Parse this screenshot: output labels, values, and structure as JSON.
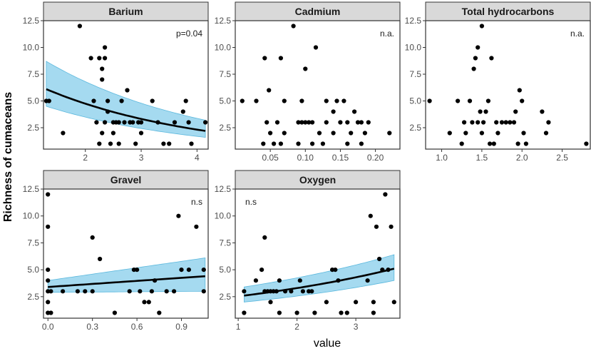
{
  "figure": {
    "ylabel": "Richness of cumaceans",
    "xlabel": "value"
  },
  "colors": {
    "point": "#000000",
    "ribbon": "#87CEEB",
    "ribbon_edge": "#5BB8DD",
    "trend": "#000000",
    "strip_fill": "#D9D9D9",
    "panel_border": "#333333"
  },
  "chart_data": [
    {
      "type": "scatter",
      "title": "Barium",
      "annotation": "p=0.04",
      "xlabel": "value",
      "ylabel": "Richness of cumaceans",
      "xlim": [
        1.25,
        4.2
      ],
      "ylim": [
        0.5,
        12.5
      ],
      "xticks": [
        2,
        3,
        4
      ],
      "xtick_labels": [
        "2",
        "3",
        "4"
      ],
      "yticks": [
        2.5,
        5.0,
        7.5,
        10.0,
        12.5
      ],
      "ytick_labels": [
        "2.5",
        "5.0",
        "7.5",
        "10.0",
        "12.5"
      ],
      "points": [
        [
          1.3,
          5
        ],
        [
          1.35,
          5
        ],
        [
          1.6,
          2
        ],
        [
          1.9,
          12
        ],
        [
          2.1,
          9
        ],
        [
          2.15,
          5
        ],
        [
          2.2,
          3
        ],
        [
          2.25,
          1
        ],
        [
          2.25,
          9
        ],
        [
          2.3,
          7
        ],
        [
          2.3,
          8
        ],
        [
          2.35,
          9
        ],
        [
          2.35,
          10
        ],
        [
          2.3,
          2
        ],
        [
          2.35,
          3
        ],
        [
          2.4,
          4
        ],
        [
          2.4,
          5
        ],
        [
          2.45,
          1
        ],
        [
          2.5,
          3
        ],
        [
          2.5,
          2
        ],
        [
          2.55,
          3
        ],
        [
          2.6,
          1
        ],
        [
          2.6,
          3
        ],
        [
          2.65,
          5
        ],
        [
          2.7,
          3
        ],
        [
          2.75,
          6
        ],
        [
          2.8,
          3
        ],
        [
          2.85,
          3
        ],
        [
          2.9,
          1
        ],
        [
          2.95,
          3
        ],
        [
          3.0,
          2
        ],
        [
          3.0,
          3
        ],
        [
          3.2,
          5
        ],
        [
          3.3,
          3
        ],
        [
          3.4,
          1
        ],
        [
          3.5,
          1
        ],
        [
          3.6,
          3
        ],
        [
          3.75,
          4
        ],
        [
          3.8,
          5
        ],
        [
          3.85,
          3
        ],
        [
          3.9,
          1
        ],
        [
          4.15,
          3
        ]
      ],
      "trend": {
        "x": [
          1.3,
          4.15
        ],
        "y": [
          6.1,
          2.2
        ],
        "curve": "exponential"
      },
      "band": {
        "lower": [
          4.5,
          1.6
        ],
        "upper": [
          8.7,
          3.2
        ]
      }
    },
    {
      "type": "scatter",
      "title": "Cadmium",
      "annotation": "n.a.",
      "xlabel": "value",
      "ylabel": "Richness of cumaceans",
      "xlim": [
        0,
        0.235
      ],
      "ylim": [
        0.5,
        12.5
      ],
      "xticks": [
        0.05,
        0.1,
        0.15,
        0.2
      ],
      "xtick_labels": [
        "0.05",
        "0.10",
        "0.15",
        "0.20"
      ],
      "yticks": [
        2.5,
        5.0,
        7.5,
        10.0,
        12.5
      ],
      "ytick_labels": [
        "2.5",
        "5.0",
        "7.5",
        "10.0",
        "12.5"
      ],
      "points": [
        [
          0.01,
          5
        ],
        [
          0.03,
          5
        ],
        [
          0.04,
          1
        ],
        [
          0.042,
          9
        ],
        [
          0.045,
          3
        ],
        [
          0.048,
          6
        ],
        [
          0.05,
          2
        ],
        [
          0.055,
          1
        ],
        [
          0.06,
          3
        ],
        [
          0.065,
          1
        ],
        [
          0.065,
          9
        ],
        [
          0.07,
          5
        ],
        [
          0.07,
          2
        ],
        [
          0.083,
          12
        ],
        [
          0.09,
          1
        ],
        [
          0.09,
          3
        ],
        [
          0.095,
          3
        ],
        [
          0.095,
          5
        ],
        [
          0.1,
          3
        ],
        [
          0.1,
          8
        ],
        [
          0.105,
          3
        ],
        [
          0.11,
          1
        ],
        [
          0.11,
          3
        ],
        [
          0.115,
          10
        ],
        [
          0.12,
          2
        ],
        [
          0.125,
          1
        ],
        [
          0.13,
          5
        ],
        [
          0.13,
          3
        ],
        [
          0.14,
          4
        ],
        [
          0.14,
          2
        ],
        [
          0.145,
          5
        ],
        [
          0.15,
          3
        ],
        [
          0.155,
          5
        ],
        [
          0.16,
          1
        ],
        [
          0.16,
          3
        ],
        [
          0.165,
          2
        ],
        [
          0.17,
          4
        ],
        [
          0.175,
          3
        ],
        [
          0.18,
          1
        ],
        [
          0.18,
          3
        ],
        [
          0.185,
          2
        ],
        [
          0.19,
          3
        ],
        [
          0.22,
          2
        ]
      ]
    },
    {
      "type": "scatter",
      "title": "Total hydrocarbons",
      "annotation": "n.a.",
      "xlabel": "value",
      "ylabel": "Richness of cumaceans",
      "xlim": [
        0.8,
        2.85
      ],
      "ylim": [
        0.5,
        12.5
      ],
      "xticks": [
        1.0,
        1.5,
        2.0,
        2.5
      ],
      "xtick_labels": [
        "1.0",
        "1.5",
        "2.0",
        "2.5"
      ],
      "yticks": [
        2.5,
        5.0,
        7.5,
        10.0,
        12.5
      ],
      "ytick_labels": [
        "2.5",
        "5.0",
        "7.5",
        "10.0",
        "12.5"
      ],
      "points": [
        [
          0.85,
          5
        ],
        [
          1.1,
          2
        ],
        [
          1.2,
          5
        ],
        [
          1.25,
          1
        ],
        [
          1.28,
          3
        ],
        [
          1.3,
          2
        ],
        [
          1.35,
          5
        ],
        [
          1.38,
          3
        ],
        [
          1.4,
          8
        ],
        [
          1.42,
          9
        ],
        [
          1.45,
          10
        ],
        [
          1.45,
          3
        ],
        [
          1.48,
          4
        ],
        [
          1.5,
          12
        ],
        [
          1.5,
          2
        ],
        [
          1.52,
          3
        ],
        [
          1.55,
          4
        ],
        [
          1.58,
          5
        ],
        [
          1.6,
          1
        ],
        [
          1.62,
          9
        ],
        [
          1.65,
          1
        ],
        [
          1.68,
          3
        ],
        [
          1.7,
          2
        ],
        [
          1.75,
          3
        ],
        [
          1.8,
          3
        ],
        [
          1.85,
          3
        ],
        [
          1.9,
          3
        ],
        [
          1.92,
          4
        ],
        [
          1.95,
          1
        ],
        [
          1.97,
          6
        ],
        [
          2.0,
          5
        ],
        [
          2.02,
          2
        ],
        [
          2.05,
          1
        ],
        [
          2.25,
          4
        ],
        [
          2.3,
          2
        ],
        [
          2.33,
          3
        ],
        [
          2.8,
          1
        ]
      ]
    },
    {
      "type": "scatter",
      "title": "Gravel",
      "annotation": "n.s",
      "xlabel": "value",
      "ylabel": "Richness of cumaceans",
      "xlim": [
        -0.03,
        1.08
      ],
      "ylim": [
        0.5,
        12.5
      ],
      "xticks": [
        0.0,
        0.3,
        0.6,
        0.9
      ],
      "xtick_labels": [
        "0.0",
        "0.3",
        "0.6",
        "0.9"
      ],
      "yticks": [
        2.5,
        5.0,
        7.5,
        10.0,
        12.5
      ],
      "ytick_labels": [
        "2.5",
        "5.0",
        "7.5",
        "10.0",
        "12.5"
      ],
      "points": [
        [
          0,
          12
        ],
        [
          0,
          9
        ],
        [
          0,
          5
        ],
        [
          0,
          4
        ],
        [
          0,
          3
        ],
        [
          0,
          2
        ],
        [
          0,
          1
        ],
        [
          0.02,
          1
        ],
        [
          0.02,
          3
        ],
        [
          0.1,
          3
        ],
        [
          0.2,
          3
        ],
        [
          0.25,
          3
        ],
        [
          0.3,
          8
        ],
        [
          0.3,
          3
        ],
        [
          0.35,
          6
        ],
        [
          0.45,
          1
        ],
        [
          0.55,
          3
        ],
        [
          0.58,
          5
        ],
        [
          0.6,
          5
        ],
        [
          0.62,
          3
        ],
        [
          0.65,
          2
        ],
        [
          0.68,
          2
        ],
        [
          0.7,
          3
        ],
        [
          0.72,
          4
        ],
        [
          0.75,
          1
        ],
        [
          0.8,
          3
        ],
        [
          0.85,
          3
        ],
        [
          0.88,
          10
        ],
        [
          0.9,
          5
        ],
        [
          0.95,
          5
        ],
        [
          1.0,
          9
        ],
        [
          1.05,
          5
        ],
        [
          1.05,
          3
        ]
      ],
      "trend": {
        "x": [
          0,
          1.06
        ],
        "y": [
          3.4,
          4.4
        ],
        "curve": "linear"
      },
      "band": {
        "lower": [
          2.9,
          3.0
        ],
        "upper": [
          4.0,
          6.1
        ]
      }
    },
    {
      "type": "scatter",
      "title": "Oxygen",
      "annotation": "n.s",
      "xlabel": "value",
      "ylabel": "Richness of cumaceans",
      "xlim": [
        0.95,
        3.75
      ],
      "ylim": [
        0.5,
        12.5
      ],
      "xticks": [
        1,
        2,
        3
      ],
      "xtick_labels": [
        "1",
        "2",
        "3"
      ],
      "yticks": [
        2.5,
        5.0,
        7.5,
        10.0,
        12.5
      ],
      "ytick_labels": [
        "2.5",
        "5.0",
        "7.5",
        "10.0",
        "12.5"
      ],
      "points": [
        [
          1.1,
          3
        ],
        [
          1.1,
          1
        ],
        [
          1.3,
          4
        ],
        [
          1.4,
          5
        ],
        [
          1.45,
          3
        ],
        [
          1.45,
          8
        ],
        [
          1.5,
          3
        ],
        [
          1.55,
          2
        ],
        [
          1.55,
          3
        ],
        [
          1.6,
          3
        ],
        [
          1.65,
          3
        ],
        [
          1.7,
          1
        ],
        [
          1.7,
          4
        ],
        [
          1.8,
          3
        ],
        [
          1.9,
          3
        ],
        [
          2.0,
          1
        ],
        [
          2.05,
          4
        ],
        [
          2.1,
          3
        ],
        [
          2.2,
          3
        ],
        [
          2.25,
          3
        ],
        [
          2.3,
          1
        ],
        [
          2.5,
          2
        ],
        [
          2.6,
          5
        ],
        [
          2.65,
          5
        ],
        [
          2.7,
          4
        ],
        [
          2.75,
          1
        ],
        [
          2.85,
          1
        ],
        [
          3.0,
          2
        ],
        [
          3.2,
          4
        ],
        [
          3.25,
          10
        ],
        [
          3.3,
          1
        ],
        [
          3.3,
          2
        ],
        [
          3.35,
          9
        ],
        [
          3.4,
          6
        ],
        [
          3.45,
          5
        ],
        [
          3.5,
          12
        ],
        [
          3.55,
          5
        ],
        [
          3.6,
          9
        ],
        [
          3.65,
          2
        ]
      ],
      "trend": {
        "x": [
          1.1,
          3.65
        ],
        "y": [
          2.6,
          5.1
        ],
        "curve": "exponential"
      },
      "band": {
        "lower": [
          2.0,
          4.0
        ],
        "upper": [
          3.4,
          6.4
        ]
      }
    }
  ]
}
